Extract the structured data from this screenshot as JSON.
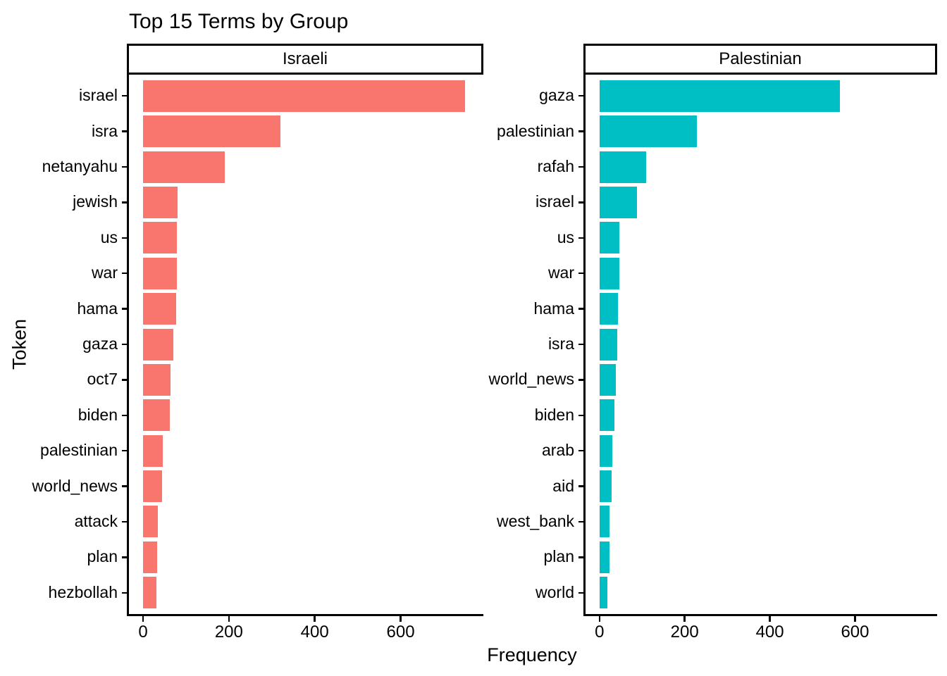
{
  "title": "Top 15 Terms by Group",
  "chart_data": {
    "type": "bar",
    "orientation": "horizontal",
    "title": "Top 15 Terms by Group",
    "xlabel": "Frequency",
    "ylabel": "Token",
    "x_ticks": [
      0,
      200,
      400,
      600
    ],
    "x_range": [
      -37.75,
      792.75
    ],
    "grid": false,
    "legend": "none",
    "facets": [
      {
        "label": "Israeli",
        "bar_color": "#F8766D",
        "categories": [
          "israel",
          "isra",
          "netanyahu",
          "jewish",
          "us",
          "war",
          "hama",
          "gaza",
          "oct7",
          "biden",
          "palestinian",
          "world_news",
          "attack",
          "plan",
          "hezbollah"
        ],
        "values": [
          750,
          320,
          190,
          81,
          79,
          79,
          77,
          70,
          64,
          62,
          46,
          44,
          35,
          33,
          31
        ]
      },
      {
        "label": "Palestinian",
        "bar_color": "#00BFC4",
        "categories": [
          "gaza",
          "palestinian",
          "rafah",
          "israel",
          "us",
          "war",
          "hama",
          "isra",
          "world_news",
          "biden",
          "arab",
          "aid",
          "west_bank",
          "plan",
          "world"
        ],
        "values": [
          565,
          228,
          110,
          88,
          46,
          46,
          43,
          41,
          38,
          35,
          30,
          28,
          24,
          24,
          18
        ]
      }
    ],
    "colors": {
      "axis": "#000000",
      "text": "#000000",
      "strip_border": "#000000",
      "strip_background": "#FFFFFF",
      "panel_background": "#FFFFFF"
    }
  }
}
